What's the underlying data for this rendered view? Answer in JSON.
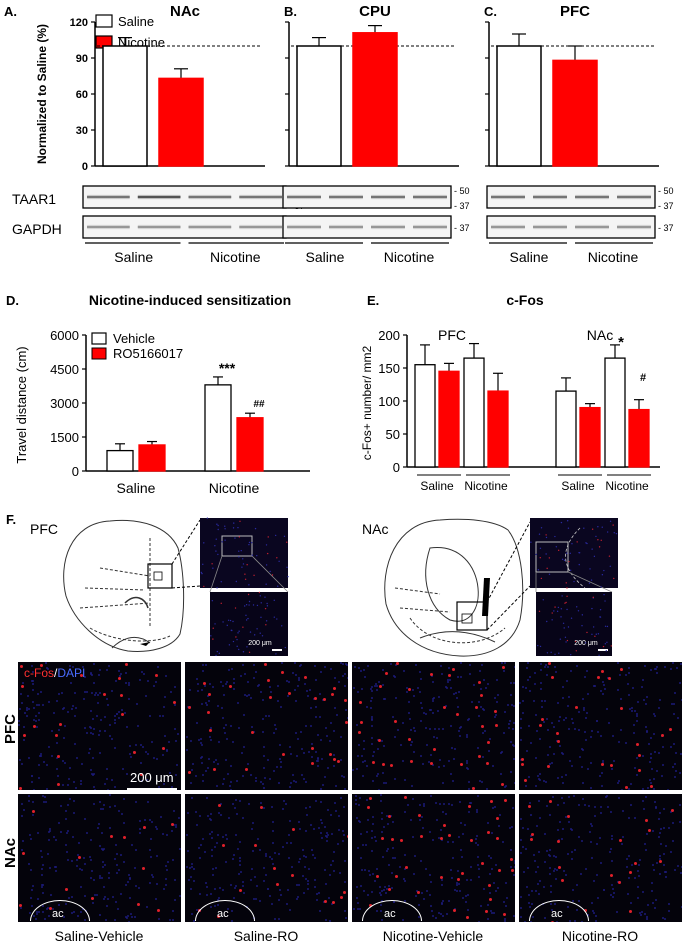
{
  "figure": {
    "panel_letters": [
      "A.",
      "B.",
      "C.",
      "D.",
      "E.",
      "F."
    ]
  },
  "panelA": {
    "title": "NAc",
    "ylabel": "Normalized to Saline (%)",
    "legend": [
      "Saline",
      "Nicotine"
    ],
    "sig": "*",
    "blot_labels": [
      "TAAR1",
      "GAPDH"
    ]
  },
  "panelB": {
    "title": "CPU"
  },
  "panelC": {
    "title": "PFC"
  },
  "blot": {
    "mw_taar1": [
      "- 50",
      "- 37"
    ],
    "mw_gapdh": "- 37",
    "groups": [
      "Saline",
      "Nicotine"
    ]
  },
  "panelD": {
    "title": "Nicotine-induced sensitization",
    "ylabel": "Travel distance (cm)",
    "legend": [
      "Vehicle",
      "RO5166017"
    ],
    "sig_vehicle": "***",
    "sig_ro": "##"
  },
  "panelE": {
    "title": "c-Fos",
    "ylabel": "c-Fos+ number/ mm2",
    "region_labels": [
      "PFC",
      "NAc"
    ],
    "sig_star": "*",
    "sig_hash": "#"
  },
  "panelF": {
    "atlas_labels": [
      "PFC",
      "NAc"
    ],
    "scale_small": "200 μm",
    "scale_large": "200 μm",
    "stain_cfos": "c-Fos",
    "stain_sep": "/",
    "stain_dapi": "DAPI",
    "row_labels": [
      "PFC",
      "NAc"
    ],
    "ac_label": "ac",
    "col_labels": [
      "Saline-Vehicle",
      "Saline-RO",
      "Nicotine-Vehicle",
      "Nicotine-RO"
    ]
  },
  "colors": {
    "saline": "#ffffff",
    "nicotine": "#ff0000",
    "dapi": "#1a1a8c",
    "cfos": "#e0202a"
  },
  "chart_data": [
    {
      "panel": "A",
      "type": "bar",
      "title": "NAc",
      "ylabel": "Normalized to Saline (%)",
      "ylim": [
        0,
        120
      ],
      "yticks": [
        "0",
        "30",
        "60",
        "90",
        "120"
      ],
      "categories": [
        "Saline",
        "Nicotine"
      ],
      "values": [
        100,
        73
      ],
      "errors": [
        7,
        8
      ],
      "reference_line": 100
    },
    {
      "panel": "B",
      "type": "bar",
      "title": "CPU",
      "ylim": [
        0,
        120
      ],
      "categories": [
        "Saline",
        "Nicotine"
      ],
      "values": [
        100,
        111
      ],
      "errors": [
        7,
        6
      ],
      "reference_line": 100
    },
    {
      "panel": "C",
      "type": "bar",
      "title": "PFC",
      "ylim": [
        0,
        120
      ],
      "categories": [
        "Saline",
        "Nicotine"
      ],
      "values": [
        100,
        88
      ],
      "errors": [
        10,
        12
      ],
      "reference_line": 100
    },
    {
      "panel": "D",
      "type": "bar",
      "title": "Nicotine-induced sensitization",
      "ylabel": "Travel distance (cm)",
      "ylim": [
        0,
        6000
      ],
      "yticks": [
        "0",
        "1500",
        "3000",
        "4500",
        "6000"
      ],
      "categories": [
        "Saline",
        "Nicotine"
      ],
      "series": [
        {
          "name": "Vehicle",
          "values": [
            900,
            3800
          ],
          "errors": [
            300,
            350
          ]
        },
        {
          "name": "RO5166017",
          "values": [
            1150,
            2350
          ],
          "errors": [
            150,
            200
          ]
        }
      ]
    },
    {
      "panel": "E",
      "type": "bar",
      "title": "c-Fos",
      "ylabel": "c-Fos+ number/ mm2",
      "ylim": [
        0,
        200
      ],
      "yticks": [
        "0",
        "50",
        "100",
        "150",
        "200"
      ],
      "groups": [
        "PFC",
        "NAc"
      ],
      "categories": [
        "Saline",
        "Nicotine",
        "Saline",
        "Nicotine"
      ],
      "series": [
        {
          "name": "Vehicle",
          "values": [
            155,
            165,
            115,
            165
          ],
          "errors": [
            30,
            22,
            20,
            20
          ]
        },
        {
          "name": "RO5166017",
          "values": [
            145,
            115,
            90,
            87
          ],
          "errors": [
            12,
            27,
            6,
            15
          ]
        }
      ]
    }
  ]
}
